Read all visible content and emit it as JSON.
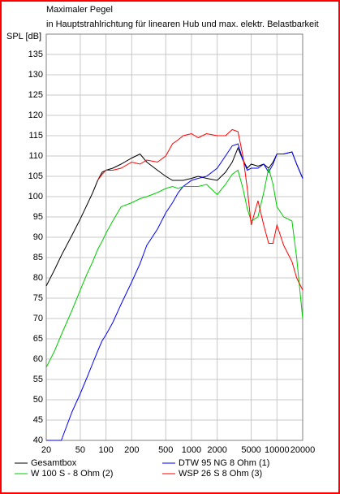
{
  "chart_data": {
    "type": "line",
    "title": "Maximaler Pegel",
    "subtitle": "in Hauptstrahlrichtung für linearen Hub und max. elektr. Belastbarkeit",
    "ylabel": "SPL [dB]",
    "xscale": "log",
    "xlim": [
      20,
      20000
    ],
    "xticks": [
      20,
      50,
      100,
      200,
      500,
      1000,
      2000,
      5000,
      10000,
      20000
    ],
    "ylim": [
      40,
      140
    ],
    "yticks": [
      40,
      45,
      50,
      55,
      60,
      65,
      70,
      75,
      80,
      85,
      90,
      95,
      100,
      105,
      110,
      115,
      120,
      125,
      130,
      135
    ],
    "grid": true,
    "legend": "bottom",
    "x": [
      20,
      25,
      30,
      40,
      50,
      60,
      70,
      80,
      90,
      100,
      120,
      150,
      200,
      250,
      300,
      400,
      500,
      600,
      700,
      800,
      1000,
      1200,
      1500,
      2000,
      2500,
      3000,
      3500,
      4000,
      4500,
      5000,
      6000,
      7000,
      8000,
      9000,
      10000,
      12000,
      15000,
      17000,
      20000
    ],
    "series": [
      {
        "name": "Gesamtbox",
        "color": "#000000",
        "values": [
          78,
          82,
          85.5,
          90.5,
          94.5,
          98,
          101,
          104,
          106,
          106.5,
          107,
          108,
          109.5,
          110.5,
          108.5,
          106.5,
          105,
          104,
          104,
          104,
          104.5,
          105,
          104.5,
          104,
          106,
          108.5,
          112,
          109,
          107,
          108,
          107.5,
          108,
          107,
          108.5,
          110.5,
          110.5,
          111,
          108,
          104.5
        ]
      },
      {
        "name": "DTW 95 NG 8 Ohm (1)",
        "color": "#0000ff",
        "values": [
          40,
          40,
          40,
          47,
          51.5,
          55.5,
          59,
          62,
          64.5,
          66,
          69,
          73.5,
          79,
          83.5,
          88,
          92,
          96,
          98.5,
          101,
          102.5,
          104,
          104.5,
          105,
          107,
          110,
          112.5,
          113,
          109,
          106.5,
          107,
          107,
          108,
          106,
          108,
          110.5,
          110.5,
          111,
          108,
          104.5
        ]
      },
      {
        "name": "W 100 S - 8 Ohm (2)",
        "color": "#00cc00",
        "values": [
          58,
          62,
          66,
          72,
          77,
          81,
          84,
          87,
          89,
          91,
          94,
          97.5,
          98.5,
          99.5,
          100,
          101,
          102,
          102.5,
          102,
          102.5,
          102.5,
          102.5,
          103,
          100.5,
          103,
          105.5,
          106.5,
          102,
          97,
          94,
          95,
          101,
          107,
          103,
          97.5,
          95,
          94,
          85,
          70
        ]
      },
      {
        "name": "WSP 26 S 8 Ohm (3)",
        "color": "#ff0000",
        "values": [
          null,
          null,
          null,
          null,
          null,
          null,
          null,
          104,
          105.5,
          106.5,
          106.5,
          107,
          108.5,
          108,
          109,
          108.5,
          110,
          113,
          114,
          115,
          115.5,
          114.5,
          115.5,
          115,
          115,
          116.5,
          116,
          110,
          102,
          93,
          99,
          93,
          88.5,
          88.5,
          93,
          88,
          84,
          80,
          77
        ]
      }
    ]
  }
}
